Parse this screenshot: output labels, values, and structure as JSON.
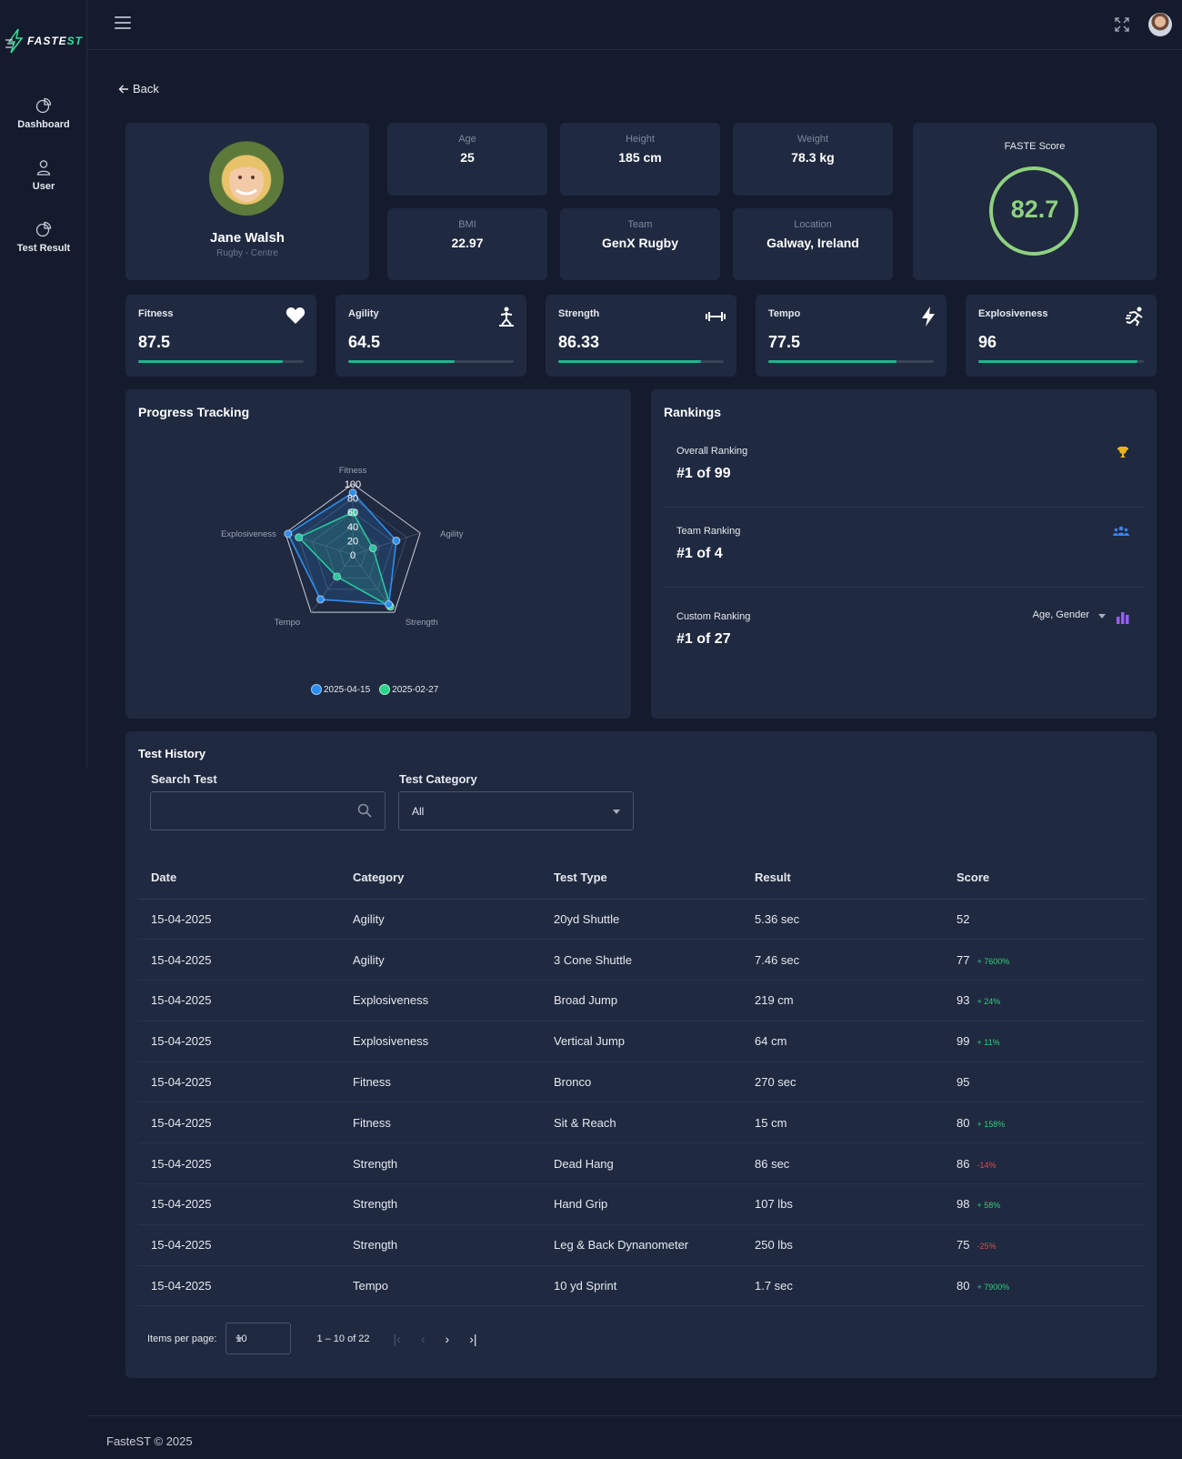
{
  "brand": {
    "name_a": "FASTE",
    "name_b": "ST"
  },
  "sidebar": {
    "items": [
      {
        "label": "Dashboard"
      },
      {
        "label": "User"
      },
      {
        "label": "Test Result"
      }
    ]
  },
  "back_label": "Back",
  "profile": {
    "name": "Jane Walsh",
    "subtitle": "Rugby - Centre"
  },
  "stats": [
    {
      "label": "Age",
      "value": "25"
    },
    {
      "label": "Height",
      "value": "185 cm"
    },
    {
      "label": "Weight",
      "value": "78.3 kg"
    },
    {
      "label": "BMI",
      "value": "22.97"
    },
    {
      "label": "Team",
      "value": "GenX Rugby"
    },
    {
      "label": "Location",
      "value": "Galway, Ireland"
    }
  ],
  "faste": {
    "title": "FASTE Score",
    "value": "82.7"
  },
  "metrics": [
    {
      "label": "Fitness",
      "value": "87.5",
      "level": 87.5,
      "icon": "heart-icon"
    },
    {
      "label": "Agility",
      "value": "64.5",
      "level": 64.5,
      "icon": "agility-icon"
    },
    {
      "label": "Strength",
      "value": "86.33",
      "level": 86.33,
      "icon": "dumbbell-icon"
    },
    {
      "label": "Tempo",
      "value": "77.5",
      "level": 77.5,
      "icon": "bolt-icon"
    },
    {
      "label": "Explosiveness",
      "value": "96",
      "level": 96,
      "icon": "runner-icon"
    }
  ],
  "progress": {
    "title": "Progress Tracking"
  },
  "chart_data": {
    "type": "radar",
    "axes": [
      "Fitness",
      "Agility",
      "Strength",
      "Tempo",
      "Explosiveness"
    ],
    "rlim": [
      0,
      100
    ],
    "ticks": [
      "0",
      "20",
      "40",
      "60",
      "80",
      "100"
    ],
    "series": [
      {
        "name": "2025-04-15",
        "color": "#2d8ef0",
        "values": [
          87.5,
          64.5,
          86.33,
          77.5,
          96
        ]
      },
      {
        "name": "2025-02-27",
        "color": "#2ad28a",
        "values": [
          60,
          30,
          90,
          38,
          80
        ]
      }
    ],
    "legend": "bottom"
  },
  "rankings": {
    "title": "Rankings",
    "rows": [
      {
        "label": "Overall Ranking",
        "value": "#1 of 99"
      },
      {
        "label": "Team Ranking",
        "value": "#1 of 4"
      },
      {
        "label": "Custom Ranking",
        "value": "#1 of 27",
        "filter": "Age, Gender"
      }
    ]
  },
  "history": {
    "title": "Test History",
    "search_label": "Search Test",
    "search_value": "",
    "category_label": "Test Category",
    "category_value": "All",
    "columns": [
      "Date",
      "Category",
      "Test Type",
      "Result",
      "Score"
    ],
    "rows": [
      {
        "date": "15-04-2025",
        "category": "Agility",
        "type": "20yd Shuttle",
        "result": "5.36 sec",
        "score": "52",
        "delta": "",
        "trend": ""
      },
      {
        "date": "15-04-2025",
        "category": "Agility",
        "type": "3 Cone Shuttle",
        "result": "7.46 sec",
        "score": "77",
        "delta": "+ 7600%",
        "trend": "pos"
      },
      {
        "date": "15-04-2025",
        "category": "Explosiveness",
        "type": "Broad Jump",
        "result": "219 cm",
        "score": "93",
        "delta": "+ 24%",
        "trend": "pos"
      },
      {
        "date": "15-04-2025",
        "category": "Explosiveness",
        "type": "Vertical Jump",
        "result": "64 cm",
        "score": "99",
        "delta": "+ 11%",
        "trend": "pos"
      },
      {
        "date": "15-04-2025",
        "category": "Fitness",
        "type": "Bronco",
        "result": "270 sec",
        "score": "95",
        "delta": "",
        "trend": ""
      },
      {
        "date": "15-04-2025",
        "category": "Fitness",
        "type": "Sit & Reach",
        "result": "15 cm",
        "score": "80",
        "delta": "+ 158%",
        "trend": "pos"
      },
      {
        "date": "15-04-2025",
        "category": "Strength",
        "type": "Dead Hang",
        "result": "86 sec",
        "score": "86",
        "delta": "-14%",
        "trend": "neg"
      },
      {
        "date": "15-04-2025",
        "category": "Strength",
        "type": "Hand Grip",
        "result": "107 lbs",
        "score": "98",
        "delta": "+ 58%",
        "trend": "pos"
      },
      {
        "date": "15-04-2025",
        "category": "Strength",
        "type": "Leg & Back Dynanometer",
        "result": "250 lbs",
        "score": "75",
        "delta": "-25%",
        "trend": "neg"
      },
      {
        "date": "15-04-2025",
        "category": "Tempo",
        "type": "10 yd Sprint",
        "result": "1.7 sec",
        "score": "80",
        "delta": "+ 7900%",
        "trend": "pos"
      }
    ]
  },
  "pager": {
    "label": "Items per page:",
    "size": "10",
    "range": "1 – 10 of 22"
  },
  "footer": "FasteST © 2025"
}
